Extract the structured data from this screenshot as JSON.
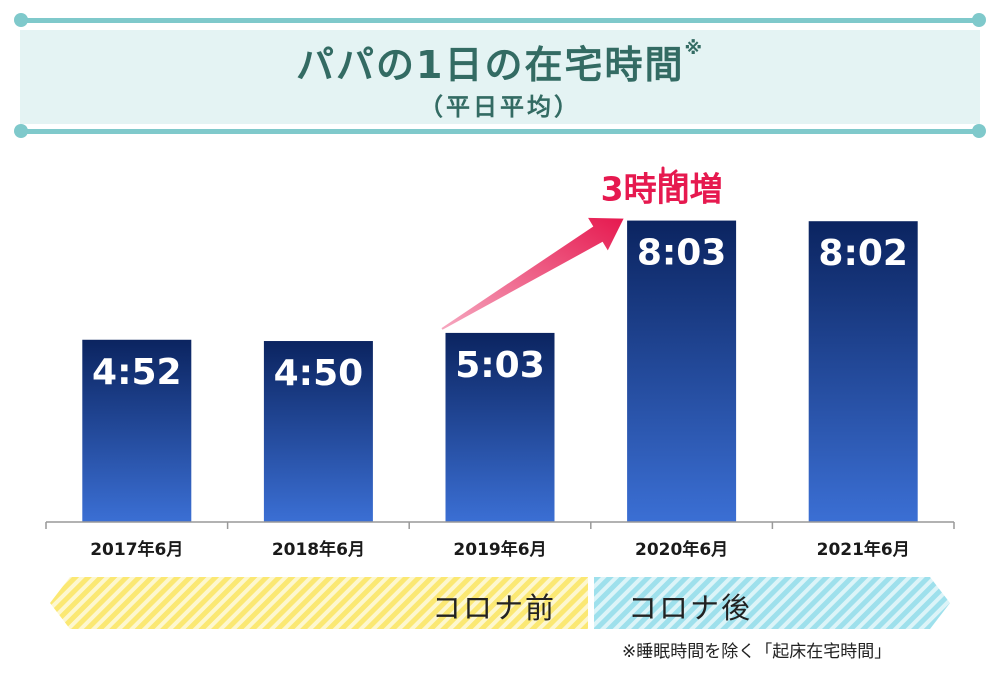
{
  "header": {
    "title": "パパの1日の在宅時間",
    "title_mark": "※",
    "subtitle": "（平日平均）"
  },
  "chart_data": {
    "type": "bar",
    "title": "パパの1日の在宅時間※（平日平均）",
    "categories": [
      "2017年6月",
      "2018年6月",
      "2019年6月",
      "2020年6月",
      "2021年6月"
    ],
    "values_hours": [
      4.867,
      4.833,
      5.05,
      8.05,
      8.033
    ],
    "labels": [
      "4:52",
      "4:50",
      "5:03",
      "8:03",
      "8:02"
    ],
    "ylim": [
      0,
      9
    ],
    "xlabel": "",
    "ylabel": "",
    "annotation": "3時間増",
    "bar_color_top": "#0b2460",
    "bar_color_bottom": "#3b6fd4",
    "annotation_color": "#e6194f"
  },
  "periods": {
    "before": {
      "label": "コロナ前",
      "color": "#fbe873"
    },
    "after": {
      "label": "コロナ後",
      "color": "#9ee0ec"
    }
  },
  "footnote": "※睡眠時間を除く「起床在宅時間」"
}
